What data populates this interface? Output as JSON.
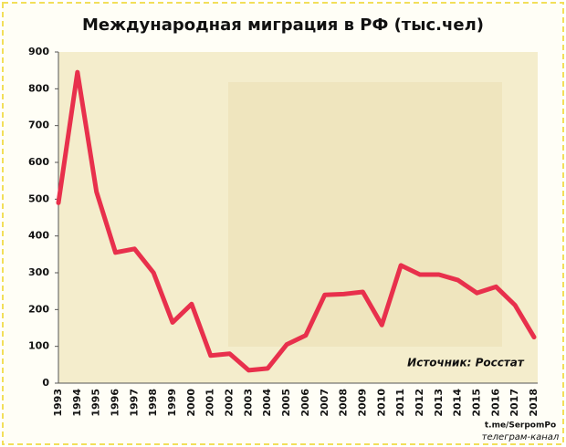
{
  "chart_data": {
    "type": "line",
    "title": "Международная миграция в РФ (тыс.чел)",
    "annotation": "Источник: Росстат",
    "watermark": [
      "t.me/SerpomPo",
      "телеграм-канал"
    ],
    "categories": [
      "1993",
      "1994",
      "1995",
      "1996",
      "1997",
      "1998",
      "1999",
      "2000",
      "2001",
      "2002",
      "2003",
      "2004",
      "2005",
      "2006",
      "2007",
      "2008",
      "2009",
      "2010",
      "2011",
      "2012",
      "2013",
      "2014",
      "2015",
      "2016",
      "2017",
      "2018"
    ],
    "values": [
      490,
      845,
      520,
      355,
      365,
      300,
      165,
      215,
      75,
      80,
      35,
      40,
      105,
      130,
      240,
      242,
      248,
      158,
      320,
      295,
      295,
      280,
      245,
      262,
      212,
      125
    ],
    "color": "#e8304c",
    "ylim": [
      0,
      900
    ],
    "yticks": [
      0,
      100,
      200,
      300,
      400,
      500,
      600,
      700,
      800,
      900
    ]
  }
}
